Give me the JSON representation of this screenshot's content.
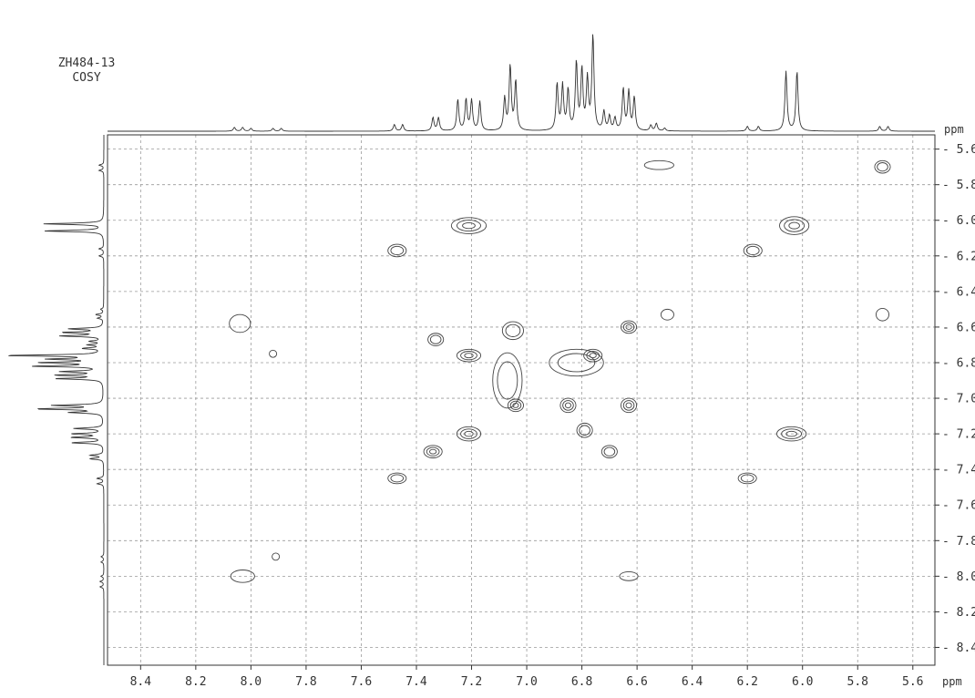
{
  "sample": {
    "id": "ZH484-13",
    "experiment": "COSY"
  },
  "colors": {
    "ink": "#333333",
    "grid": "#9a9a9a",
    "contour": "#444444"
  },
  "chart_data": {
    "type": "heatmap",
    "title": "",
    "xlabel": "ppm",
    "ylabel": "ppm",
    "xlim": [
      8.52,
      5.52
    ],
    "ylim": [
      5.52,
      8.5
    ],
    "x_reversed": true,
    "grid": true,
    "x_ticks": [
      "8.4",
      "8.2",
      "8.0",
      "7.8",
      "7.6",
      "7.4",
      "7.2",
      "7.0",
      "6.8",
      "6.6",
      "6.4",
      "6.2",
      "6.0",
      "5.8",
      "5.6"
    ],
    "y_ticks": [
      "5.6",
      "5.8",
      "6.0",
      "6.2",
      "6.4",
      "6.6",
      "6.8",
      "7.0",
      "7.2",
      "7.4",
      "7.6",
      "7.8",
      "8.0",
      "8.2",
      "8.4"
    ],
    "projection_peaks": [
      {
        "ppm": 8.06,
        "h": 0.04
      },
      {
        "ppm": 8.03,
        "h": 0.04
      },
      {
        "ppm": 8.0,
        "h": 0.03
      },
      {
        "ppm": 7.92,
        "h": 0.03
      },
      {
        "ppm": 7.89,
        "h": 0.03
      },
      {
        "ppm": 7.48,
        "h": 0.07
      },
      {
        "ppm": 7.45,
        "h": 0.07
      },
      {
        "ppm": 7.34,
        "h": 0.14
      },
      {
        "ppm": 7.32,
        "h": 0.14
      },
      {
        "ppm": 7.25,
        "h": 0.33
      },
      {
        "ppm": 7.22,
        "h": 0.33
      },
      {
        "ppm": 7.2,
        "h": 0.32
      },
      {
        "ppm": 7.17,
        "h": 0.31
      },
      {
        "ppm": 7.08,
        "h": 0.34
      },
      {
        "ppm": 7.06,
        "h": 0.68
      },
      {
        "ppm": 7.04,
        "h": 0.52
      },
      {
        "ppm": 6.89,
        "h": 0.49
      },
      {
        "ppm": 6.87,
        "h": 0.47
      },
      {
        "ppm": 6.85,
        "h": 0.42
      },
      {
        "ppm": 6.82,
        "h": 0.71
      },
      {
        "ppm": 6.8,
        "h": 0.63
      },
      {
        "ppm": 6.78,
        "h": 0.53
      },
      {
        "ppm": 6.76,
        "h": 1.0
      },
      {
        "ppm": 6.72,
        "h": 0.2
      },
      {
        "ppm": 6.7,
        "h": 0.15
      },
      {
        "ppm": 6.68,
        "h": 0.13
      },
      {
        "ppm": 6.65,
        "h": 0.44
      },
      {
        "ppm": 6.63,
        "h": 0.41
      },
      {
        "ppm": 6.61,
        "h": 0.35
      },
      {
        "ppm": 6.55,
        "h": 0.06
      },
      {
        "ppm": 6.53,
        "h": 0.08
      },
      {
        "ppm": 6.5,
        "h": 0.03
      },
      {
        "ppm": 6.2,
        "h": 0.05
      },
      {
        "ppm": 6.16,
        "h": 0.05
      },
      {
        "ppm": 6.06,
        "h": 0.63
      },
      {
        "ppm": 6.02,
        "h": 0.63
      },
      {
        "ppm": 5.72,
        "h": 0.05
      },
      {
        "ppm": 5.69,
        "h": 0.05
      }
    ],
    "cross_peaks": [
      {
        "x": 6.52,
        "y": 5.69,
        "w": 0.1,
        "h": 0.04,
        "levels": 1
      },
      {
        "x": 5.71,
        "y": 5.7,
        "w": 0.05,
        "h": 0.06,
        "levels": 2
      },
      {
        "x": 7.21,
        "y": 6.03,
        "w": 0.12,
        "h": 0.08,
        "levels": 3
      },
      {
        "x": 6.03,
        "y": 6.03,
        "w": 0.1,
        "h": 0.09,
        "levels": 3
      },
      {
        "x": 7.47,
        "y": 6.17,
        "w": 0.06,
        "h": 0.06,
        "levels": 2
      },
      {
        "x": 6.18,
        "y": 6.17,
        "w": 0.06,
        "h": 0.06,
        "levels": 2
      },
      {
        "x": 6.49,
        "y": 6.53,
        "w": 0.04,
        "h": 0.05,
        "levels": 1
      },
      {
        "x": 5.71,
        "y": 6.53,
        "w": 0.04,
        "h": 0.06,
        "levels": 1
      },
      {
        "x": 8.04,
        "y": 6.58,
        "w": 0.07,
        "h": 0.09,
        "levels": 1
      },
      {
        "x": 7.05,
        "y": 6.62,
        "w": 0.07,
        "h": 0.09,
        "levels": 2
      },
      {
        "x": 6.63,
        "y": 6.6,
        "w": 0.05,
        "h": 0.06,
        "levels": 3
      },
      {
        "x": 7.33,
        "y": 6.67,
        "w": 0.05,
        "h": 0.06,
        "levels": 2
      },
      {
        "x": 7.92,
        "y": 6.75,
        "w": 0.02,
        "h": 0.03,
        "levels": 1
      },
      {
        "x": 7.21,
        "y": 6.76,
        "w": 0.08,
        "h": 0.06,
        "levels": 3
      },
      {
        "x": 6.76,
        "y": 6.76,
        "w": 0.06,
        "h": 0.06,
        "levels": 3
      },
      {
        "x": 7.07,
        "y": 6.9,
        "w": 0.1,
        "h": 0.3,
        "levels": 2
      },
      {
        "x": 6.82,
        "y": 6.8,
        "w": 0.19,
        "h": 0.14,
        "levels": 2
      },
      {
        "x": 7.04,
        "y": 7.04,
        "w": 0.05,
        "h": 0.06,
        "levels": 3
      },
      {
        "x": 6.85,
        "y": 7.04,
        "w": 0.05,
        "h": 0.07,
        "levels": 3
      },
      {
        "x": 6.63,
        "y": 7.04,
        "w": 0.05,
        "h": 0.07,
        "levels": 3
      },
      {
        "x": 7.21,
        "y": 7.2,
        "w": 0.08,
        "h": 0.07,
        "levels": 3
      },
      {
        "x": 6.79,
        "y": 7.18,
        "w": 0.05,
        "h": 0.07,
        "levels": 2
      },
      {
        "x": 6.04,
        "y": 7.2,
        "w": 0.1,
        "h": 0.07,
        "levels": 3
      },
      {
        "x": 7.34,
        "y": 7.3,
        "w": 0.06,
        "h": 0.06,
        "levels": 3
      },
      {
        "x": 6.7,
        "y": 7.3,
        "w": 0.05,
        "h": 0.06,
        "levels": 2
      },
      {
        "x": 7.47,
        "y": 7.45,
        "w": 0.06,
        "h": 0.05,
        "levels": 2
      },
      {
        "x": 6.2,
        "y": 7.45,
        "w": 0.06,
        "h": 0.05,
        "levels": 2
      },
      {
        "x": 7.91,
        "y": 7.89,
        "w": 0.02,
        "h": 0.03,
        "levels": 1
      },
      {
        "x": 8.03,
        "y": 8.0,
        "w": 0.08,
        "h": 0.06,
        "levels": 1
      },
      {
        "x": 6.63,
        "y": 8.0,
        "w": 0.06,
        "h": 0.04,
        "levels": 1
      }
    ]
  }
}
